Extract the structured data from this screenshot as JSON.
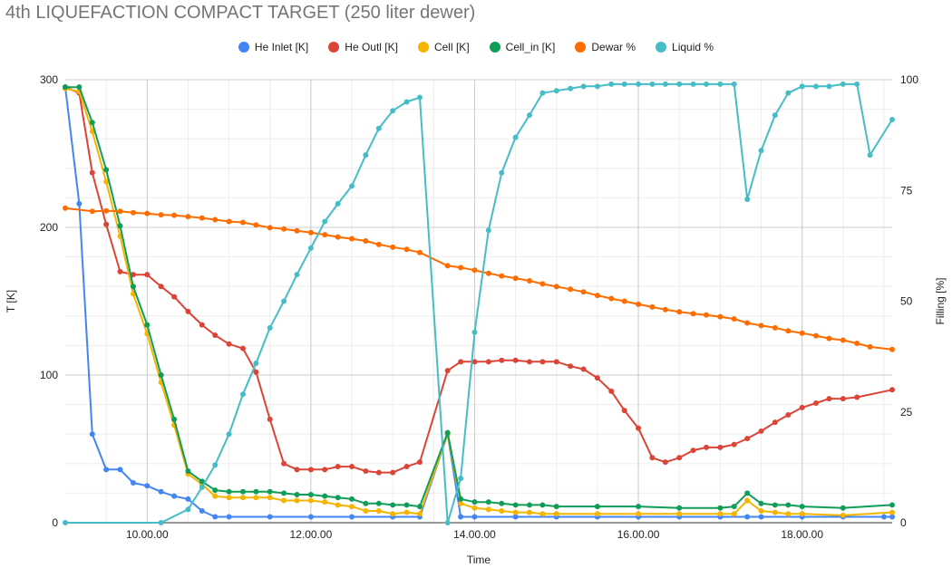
{
  "chart_data": {
    "type": "line",
    "title": "4th LIQUEFACTION COMPACT TARGET (250 liter dewer)",
    "xlabel": "Time",
    "ylabel": "T [K]",
    "y2label": "Filling [%]",
    "xlim": [
      9.0,
      19.1
    ],
    "ylim": [
      0,
      300
    ],
    "y2lim": [
      0,
      100
    ],
    "xticks": [
      10,
      12,
      14,
      16,
      18
    ],
    "xtick_labels": [
      "10.00.00",
      "12.00.00",
      "14.00.00",
      "16.00.00",
      "18.00.00"
    ],
    "yticks": [
      0,
      100,
      200,
      300
    ],
    "ytick_labels": [
      "0",
      "100",
      "200",
      "300"
    ],
    "y2ticks": [
      0,
      25,
      50,
      75,
      100
    ],
    "y2tick_labels": [
      "0",
      "25",
      "50",
      "75",
      "100"
    ],
    "grid": true,
    "legend_position": "top",
    "series": [
      {
        "name": "He Inlet [K]",
        "color": "#4285f4",
        "axis": "left",
        "x": [
          9.0,
          9.17,
          9.33,
          9.5,
          9.67,
          9.83,
          10.0,
          10.17,
          10.33,
          10.5,
          10.67,
          10.83,
          11.0,
          11.5,
          12.0,
          12.5,
          13.0,
          13.33,
          13.67,
          13.83,
          14.0,
          14.5,
          15.0,
          15.5,
          16.0,
          16.5,
          17.0,
          17.33,
          17.5,
          18.0,
          18.5,
          19.0,
          19.1
        ],
        "values": [
          295,
          216,
          60,
          36,
          36,
          27,
          25,
          21,
          18,
          16,
          8,
          4,
          4,
          4,
          4,
          4,
          4,
          4,
          60,
          4,
          4,
          4,
          4,
          4,
          4,
          4,
          4,
          4,
          4,
          4,
          4,
          4,
          4
        ]
      },
      {
        "name": "He Outl [K]",
        "color": "#db4437",
        "axis": "left",
        "x": [
          9.0,
          9.17,
          9.33,
          9.5,
          9.67,
          9.83,
          10.0,
          10.17,
          10.33,
          10.5,
          10.67,
          10.83,
          11.0,
          11.17,
          11.33,
          11.5,
          11.67,
          11.83,
          12.0,
          12.17,
          12.33,
          12.5,
          12.67,
          12.83,
          13.0,
          13.17,
          13.33,
          13.67,
          13.83,
          14.0,
          14.17,
          14.33,
          14.5,
          14.67,
          14.83,
          15.0,
          15.17,
          15.33,
          15.5,
          15.67,
          15.83,
          16.0,
          16.17,
          16.33,
          16.5,
          16.67,
          16.83,
          17.0,
          17.17,
          17.33,
          17.5,
          17.67,
          17.83,
          18.0,
          18.17,
          18.33,
          18.5,
          18.67,
          19.1
        ],
        "values": [
          295,
          291,
          237,
          202,
          170,
          168,
          168,
          160,
          153,
          143,
          134,
          127,
          121,
          118,
          102,
          70,
          40,
          36,
          36,
          36,
          38,
          38,
          35,
          34,
          34,
          38,
          41,
          103,
          109,
          109,
          109,
          110,
          110,
          109,
          109,
          109,
          106,
          104,
          98,
          89,
          76,
          64,
          44,
          41,
          44,
          49,
          51,
          51,
          53,
          57,
          62,
          68,
          73,
          78,
          81,
          84,
          84,
          85,
          90
        ]
      },
      {
        "name": "Cell [K]",
        "color": "#f4b400",
        "axis": "left",
        "x": [
          9.0,
          9.17,
          9.33,
          9.5,
          9.67,
          9.83,
          10.0,
          10.17,
          10.33,
          10.5,
          10.67,
          10.83,
          11.0,
          11.17,
          11.33,
          11.5,
          11.67,
          11.83,
          12.0,
          12.17,
          12.33,
          12.5,
          12.67,
          12.83,
          13.0,
          13.17,
          13.33,
          13.67,
          13.83,
          14.0,
          14.17,
          14.33,
          14.5,
          14.67,
          14.83,
          15.0,
          15.5,
          16.0,
          16.5,
          17.0,
          17.17,
          17.33,
          17.5,
          17.67,
          17.83,
          18.0,
          18.5,
          19.1
        ],
        "values": [
          294,
          292,
          265,
          231,
          194,
          155,
          128,
          95,
          66,
          33,
          26,
          18,
          17,
          17,
          17,
          17,
          15,
          15,
          15,
          14,
          12,
          11,
          8,
          8,
          6,
          7,
          6,
          60,
          13,
          10,
          9,
          8,
          7,
          7,
          6,
          6,
          6,
          6,
          6,
          6,
          6,
          15,
          8,
          7,
          6,
          6,
          5,
          7
        ]
      },
      {
        "name": "Cell_in [K]",
        "color": "#0f9d58",
        "axis": "left",
        "x": [
          9.0,
          9.17,
          9.33,
          9.5,
          9.67,
          9.83,
          10.0,
          10.17,
          10.33,
          10.5,
          10.67,
          10.83,
          11.0,
          11.17,
          11.33,
          11.5,
          11.67,
          11.83,
          12.0,
          12.17,
          12.33,
          12.5,
          12.67,
          12.83,
          13.0,
          13.17,
          13.33,
          13.67,
          13.83,
          14.0,
          14.17,
          14.33,
          14.5,
          14.67,
          14.83,
          15.0,
          15.5,
          16.0,
          16.5,
          17.0,
          17.17,
          17.33,
          17.5,
          17.67,
          17.83,
          18.0,
          18.5,
          19.1
        ],
        "values": [
          295,
          295,
          271,
          239,
          201,
          160,
          134,
          100,
          70,
          35,
          28,
          22,
          21,
          21,
          21,
          21,
          20,
          19,
          19,
          18,
          17,
          16,
          13,
          13,
          12,
          12,
          11,
          61,
          16,
          14,
          14,
          13,
          12,
          12,
          12,
          11,
          11,
          11,
          10,
          10,
          11,
          20,
          13,
          12,
          12,
          11,
          10,
          12
        ]
      },
      {
        "name": "Dewar %",
        "color": "#ff6d00",
        "axis": "right",
        "x": [
          9.0,
          9.33,
          9.5,
          9.67,
          9.83,
          10.0,
          10.17,
          10.33,
          10.5,
          10.67,
          10.83,
          11.0,
          11.17,
          11.33,
          11.5,
          11.67,
          11.83,
          12.0,
          12.17,
          12.33,
          12.5,
          12.67,
          12.83,
          13.0,
          13.17,
          13.33,
          13.67,
          13.83,
          14.0,
          14.17,
          14.33,
          14.5,
          14.67,
          14.83,
          15.0,
          15.17,
          15.33,
          15.5,
          15.67,
          15.83,
          16.0,
          16.17,
          16.33,
          16.5,
          16.67,
          16.83,
          17.0,
          17.17,
          17.33,
          17.5,
          17.67,
          17.83,
          18.0,
          18.17,
          18.33,
          18.5,
          18.67,
          18.83,
          19.1
        ],
        "values": [
          71,
          70.3,
          70.4,
          70.3,
          70.0,
          69.8,
          69.5,
          69.4,
          69.1,
          68.8,
          68.4,
          68.0,
          67.8,
          67.2,
          66.6,
          66.3,
          65.9,
          65.5,
          65.0,
          64.5,
          64.1,
          63.6,
          62.8,
          62.2,
          61.7,
          61.0,
          58.0,
          57.6,
          57.0,
          56.3,
          55.7,
          55.2,
          54.6,
          53.9,
          53.3,
          52.7,
          52.1,
          51.3,
          50.6,
          50.0,
          49.3,
          48.7,
          48.1,
          47.6,
          47.2,
          46.9,
          46.5,
          46.0,
          45.1,
          44.5,
          44.0,
          43.3,
          42.8,
          42.2,
          41.6,
          41.2,
          40.5,
          39.7,
          39.1
        ]
      },
      {
        "name": "Liquid %",
        "color": "#46bdc6",
        "axis": "right",
        "x": [
          9.0,
          10.17,
          10.5,
          10.67,
          10.83,
          11.0,
          11.17,
          11.33,
          11.5,
          11.67,
          11.83,
          12.0,
          12.17,
          12.33,
          12.5,
          12.67,
          12.83,
          13.0,
          13.17,
          13.33,
          13.67,
          13.83,
          14.0,
          14.17,
          14.33,
          14.5,
          14.67,
          14.83,
          15.0,
          15.17,
          15.33,
          15.5,
          15.67,
          15.83,
          16.0,
          16.17,
          16.33,
          16.5,
          16.67,
          16.83,
          17.0,
          17.17,
          17.33,
          17.5,
          17.67,
          17.83,
          18.0,
          18.17,
          18.33,
          18.5,
          18.67,
          18.83,
          19.1
        ],
        "values": [
          0,
          0,
          3,
          8,
          13,
          20,
          29,
          36,
          44,
          50,
          56,
          62,
          68,
          72,
          76,
          83,
          89,
          93,
          95,
          96,
          0,
          10,
          43,
          66,
          79,
          87,
          92,
          97,
          97.5,
          98,
          98.5,
          98.5,
          99,
          99,
          99,
          99,
          99,
          99,
          99,
          99,
          99,
          99,
          73,
          84,
          92,
          97,
          98.5,
          98.5,
          98.5,
          99,
          99,
          83,
          91
        ]
      }
    ]
  }
}
